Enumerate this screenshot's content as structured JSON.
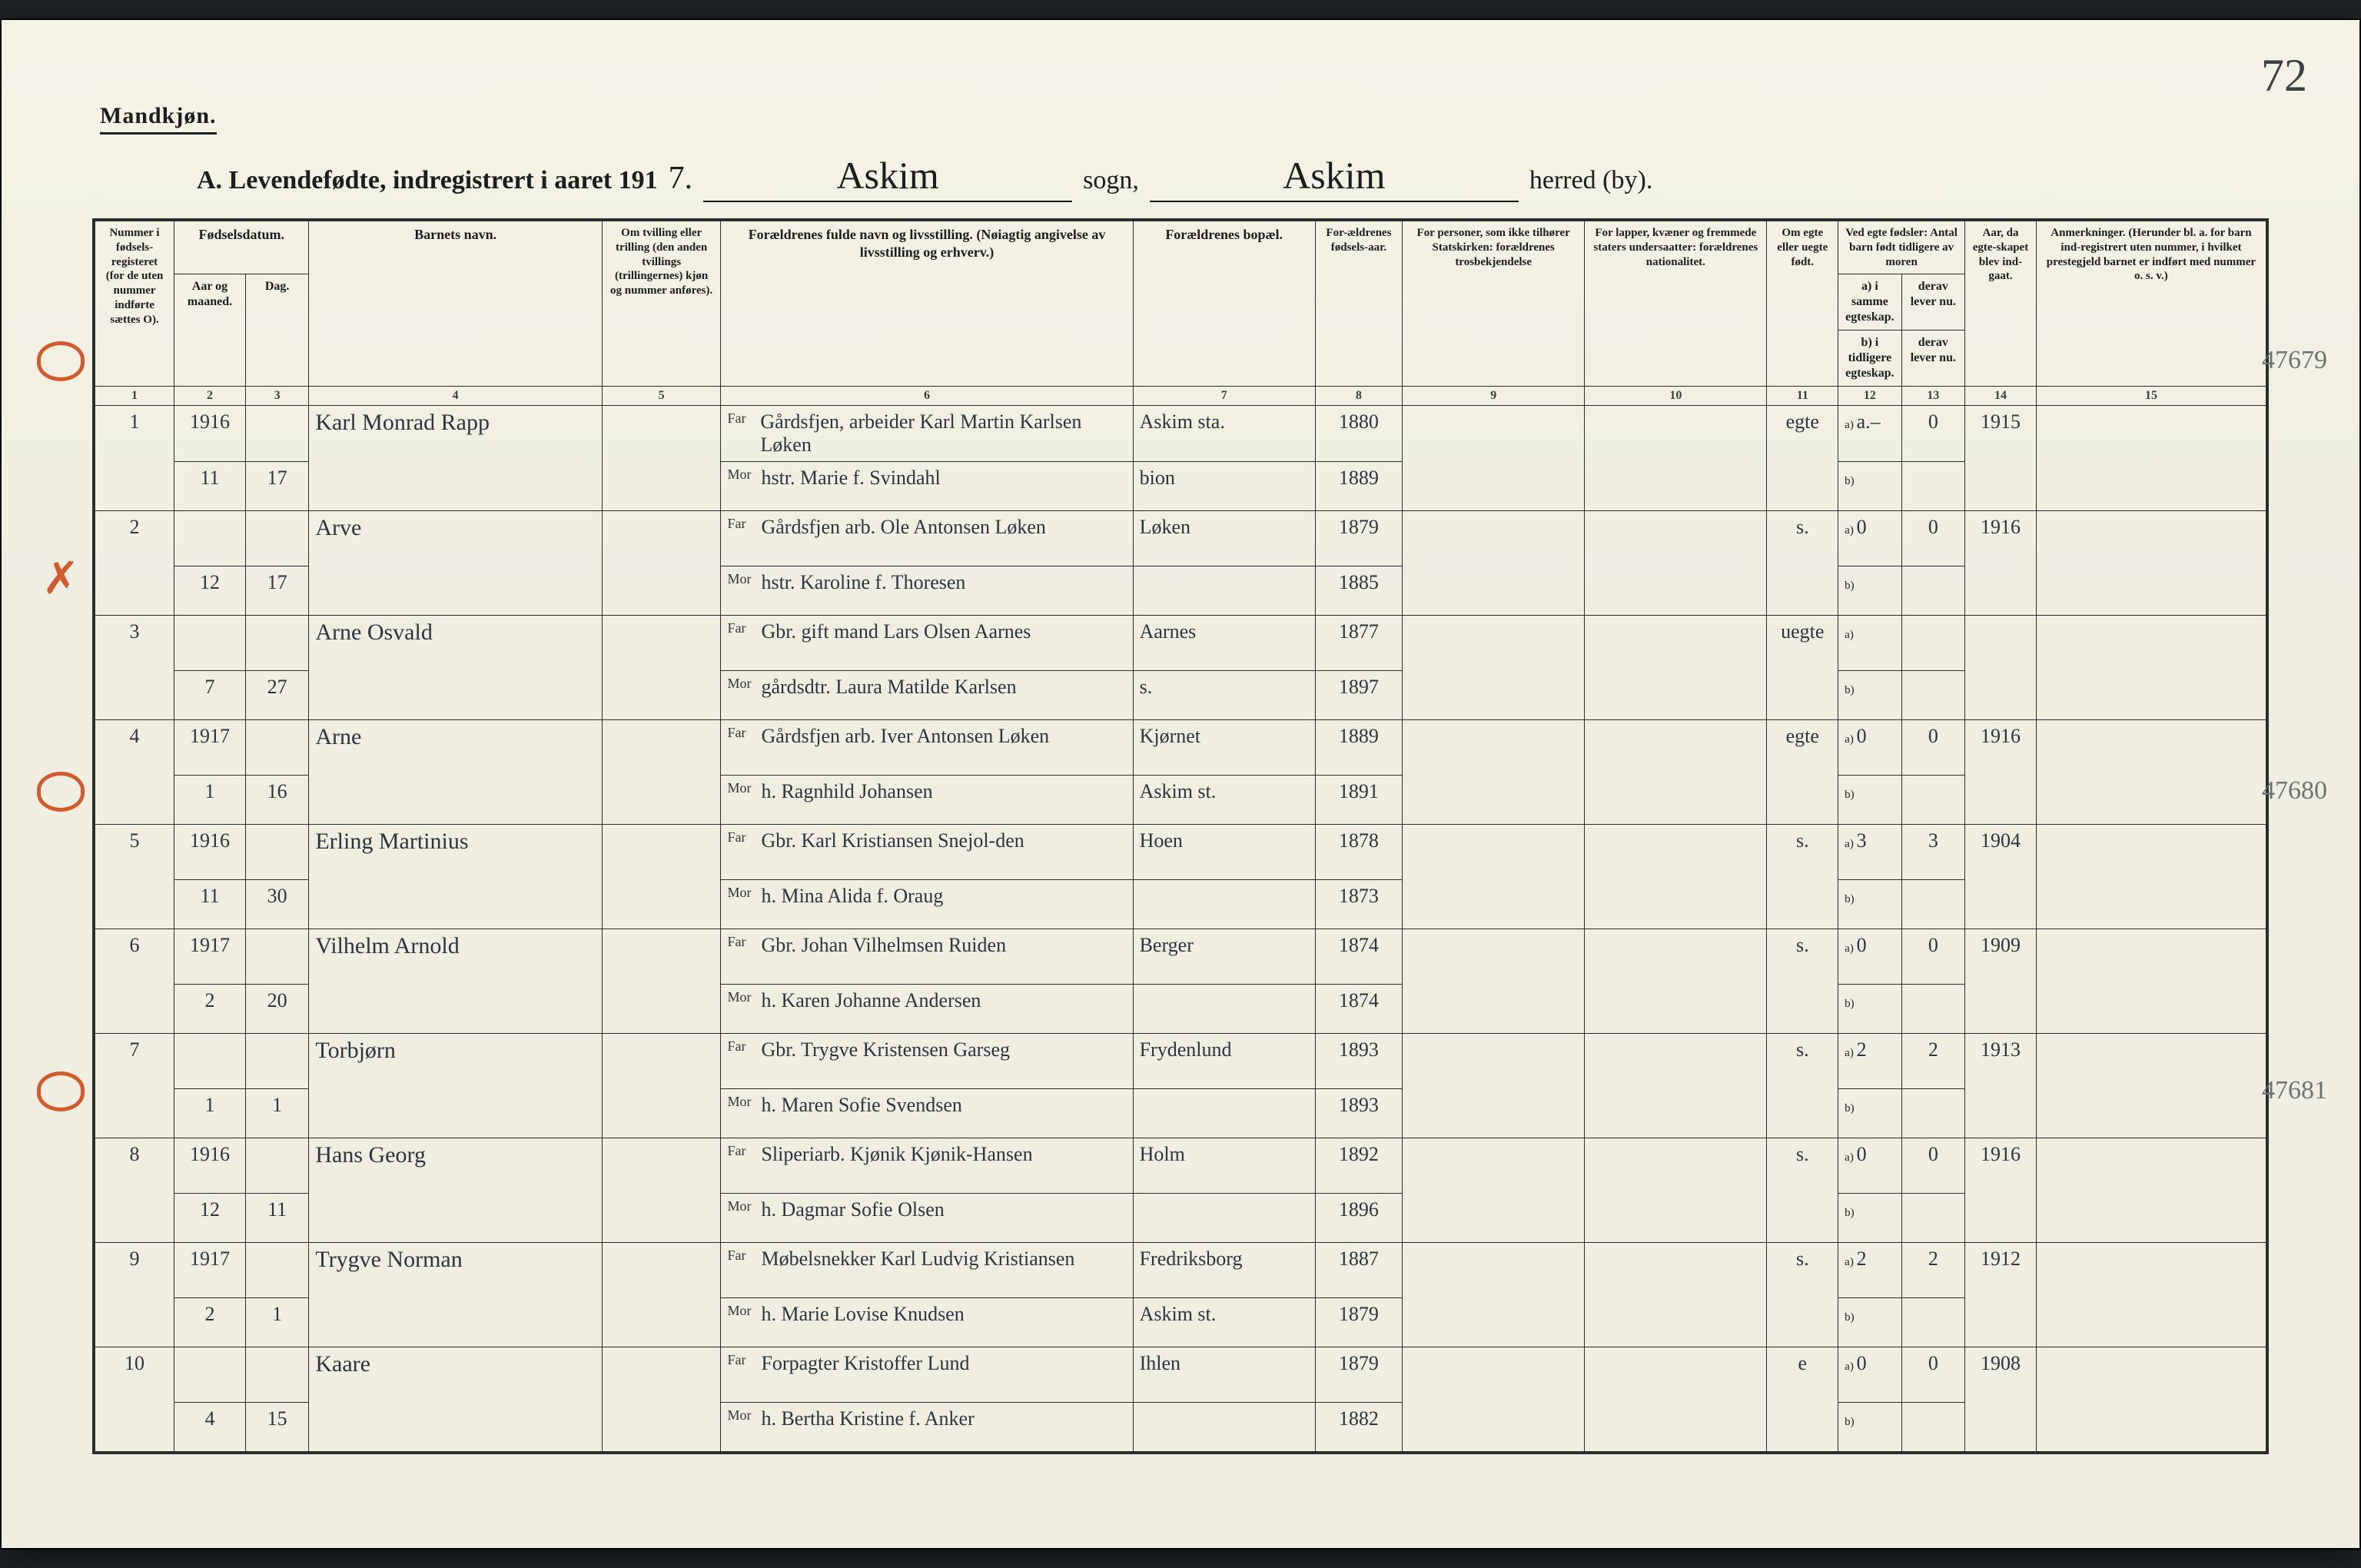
{
  "page_number": "72",
  "mandkjon": "Mandkjøn.",
  "title": {
    "prefix": "A.  Levendefødte, indregistrert i aaret 191",
    "year_suffix_hand": "7.",
    "sogn_label": "sogn,",
    "sogn_value": "Askim",
    "herred_label": "herred (by).",
    "herred_value": "Askim"
  },
  "headers": {
    "c1": "Nummer i fødsels-registeret (for de uten nummer indførte sættes O).",
    "c2_top": "Fødselsdatum.",
    "c2a": "Aar og maaned.",
    "c2b": "Dag.",
    "c4": "Barnets navn.",
    "c5": "Om tvilling eller trilling (den anden tvillings (trillingernes) kjøn og nummer anføres).",
    "c6": "Forældrenes fulde navn og livsstilling. (Nøiagtig angivelse av livsstilling og erhverv.)",
    "c7": "Forældrenes bopæl.",
    "c8": "For-ældrenes fødsels-aar.",
    "c9": "For personer, som ikke tilhører Statskirken: forældrenes trosbekjendelse",
    "c10": "For lapper, kvæner og fremmede staters undersaatter: forældrenes nationalitet.",
    "c11": "Om egte eller uegte født.",
    "c12_top": "Ved egte fødsler: Antal barn født tidligere av moren",
    "c12a": "a) i samme egteskap.",
    "c12b": "b) i tidligere egteskap.",
    "c13": "derav lever nu.",
    "c13b": "derav lever nu.",
    "c14": "Aar, da egte-skapet blev ind-gaat.",
    "c15": "Anmerkninger. (Herunder bl. a. for barn ind-registrert uten nummer, i hvilket prestegjeld barnet er indført med nummer o. s. v.)"
  },
  "colnums": [
    "1",
    "2",
    "3",
    "4",
    "5",
    "6",
    "7",
    "8",
    "9",
    "10",
    "11",
    "12",
    "13",
    "14",
    "15"
  ],
  "rows": [
    {
      "no": "1",
      "year_top": "1916",
      "aar": "11",
      "dag": "17",
      "name": "Karl Monrad Rapp",
      "far": "Gårdsfjen, arbeider Karl Martin Karlsen Løken",
      "mor": "hstr. Marie f. Svindahl",
      "bopel_far": "Askim sta.",
      "bopel_mor": "bion",
      "fb_far": "1880",
      "fb_mor": "1889",
      "egte": "egte",
      "a": "a.–",
      "b": "",
      "lever_a": "0",
      "lever_b": "",
      "egteskap_aar": "1915",
      "right_note": "47679",
      "margin": "circle",
      "margin_top": 420
    },
    {
      "no": "2",
      "aar": "12",
      "dag": "17",
      "name": "Arve",
      "far": "Gårdsfjen arb. Ole Antonsen Løken",
      "mor": "hstr. Karoline f. Thoresen",
      "bopel_far": "Løken",
      "bopel_mor": "",
      "fb_far": "1879",
      "fb_mor": "1885",
      "egte": "s.",
      "a": "0",
      "lever_a": "0",
      "egteskap_aar": "1916"
    },
    {
      "no": "3",
      "aar": "7",
      "dag": "27",
      "name": "Arne Osvald",
      "far": "Gbr. gift mand Lars Olsen Aarnes",
      "mor": "gårdsdtr. Laura Matilde Karlsen",
      "bopel_far": "Aarnes",
      "bopel_mor": "s.",
      "fb_far": "1877",
      "fb_mor": "1897",
      "egte": "uegte",
      "margin": "x",
      "margin_top": 700
    },
    {
      "no": "4",
      "year_top": "1917",
      "aar": "1",
      "dag": "16",
      "name": "Arne",
      "far": "Gårdsfjen arb. Iver Antonsen Løken",
      "mor": "h. Ragnhild Johansen",
      "bopel_far": "Kjørnet",
      "bopel_mor": "Askim st.",
      "fb_far": "1889",
      "fb_mor": "1891",
      "egte": "egte",
      "a": "0",
      "lever_a": "0",
      "egteskap_aar": "1916"
    },
    {
      "no": "5",
      "year_top": "1916",
      "aar": "11",
      "dag": "30",
      "name": "Erling Martinius",
      "far": "Gbr. Karl Kristiansen Snejol-den",
      "mor": "h. Mina Alida f. Oraug",
      "bopel_far": "Hoen",
      "bopel_mor": "",
      "fb_far": "1878",
      "fb_mor": "1873",
      "egte": "s.",
      "a": "3",
      "lever_a": "3",
      "egteskap_aar": "1904",
      "right_note": "47680",
      "margin": "circle",
      "margin_top": 980
    },
    {
      "no": "6",
      "year_top": "1917",
      "aar": "2",
      "dag": "20",
      "name": "Vilhelm Arnold",
      "far": "Gbr. Johan Vilhelmsen Ruiden",
      "mor": "h. Karen Johanne Andersen",
      "bopel_far": "Berger",
      "bopel_mor": "",
      "fb_far": "1874",
      "fb_mor": "1874",
      "egte": "s.",
      "a": "0",
      "lever_a": "0",
      "egteskap_aar": "1909"
    },
    {
      "no": "7",
      "aar": "1",
      "dag": "1",
      "name": "Torbjørn",
      "far": "Gbr. Trygve Kristensen Garseg",
      "mor": "h. Maren Sofie Svendsen",
      "bopel_far": "Frydenlund",
      "bopel_mor": "",
      "fb_far": "1893",
      "fb_mor": "1893",
      "egte": "s.",
      "a": "2",
      "lever_a": "2",
      "egteskap_aar": "1913"
    },
    {
      "no": "8",
      "year_top": "1916",
      "aar": "12",
      "dag": "11",
      "name": "Hans Georg",
      "far": "Sliperiarb. Kjønik Kjønik-Hansen",
      "mor": "h. Dagmar Sofie Olsen",
      "bopel_far": "Holm",
      "bopel_mor": "",
      "fb_far": "1892",
      "fb_mor": "1896",
      "egte": "s.",
      "a": "0",
      "lever_a": "0",
      "egteskap_aar": "1916",
      "right_note": "47681",
      "margin": "circle",
      "margin_top": 1370
    },
    {
      "no": "9",
      "year_top": "1917",
      "aar": "2",
      "dag": "1",
      "name": "Trygve Norman",
      "far": "Møbelsnekker Karl Ludvig Kristiansen",
      "mor": "h. Marie Lovise Knudsen",
      "bopel_far": "Fredriksborg",
      "bopel_mor": "Askim st.",
      "fb_far": "1887",
      "fb_mor": "1879",
      "egte": "s.",
      "a": "2",
      "lever_a": "2",
      "egteskap_aar": "1912"
    },
    {
      "no": "10",
      "aar": "4",
      "dag": "15",
      "name": "Kaare",
      "far": "Forpagter Kristoffer Lund",
      "mor": "h. Bertha Kristine f. Anker",
      "bopel_far": "Ihlen",
      "bopel_mor": "",
      "fb_far": "1879",
      "fb_mor": "1882",
      "egte": "e",
      "a": "0",
      "lever_a": "0",
      "egteskap_aar": "1908"
    }
  ],
  "labels": {
    "far": "Far",
    "mor": "Mor",
    "a": "a)",
    "b": "b)"
  }
}
